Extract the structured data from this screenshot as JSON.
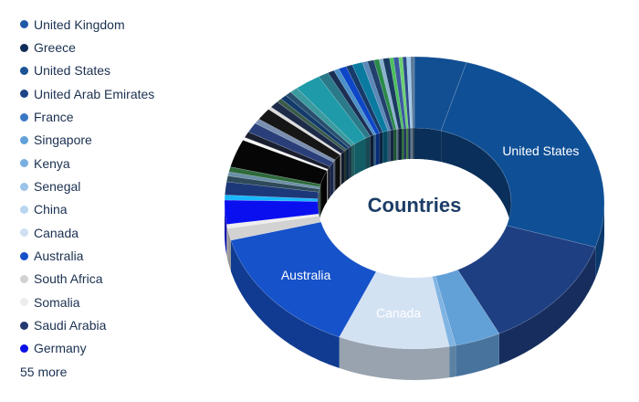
{
  "chart_data": {
    "type": "pie",
    "variant": "3d-donut",
    "title": "Countries",
    "legend_placement": "left",
    "legend": [
      {
        "name": "United Kingdom",
        "color": "#1f5aa6"
      },
      {
        "name": "Greece",
        "color": "#0f2d57"
      },
      {
        "name": "United States",
        "color": "#1c5296"
      },
      {
        "name": "United Arab Emirates",
        "color": "#1d4585"
      },
      {
        "name": "France",
        "color": "#3a78c4"
      },
      {
        "name": "Singapore",
        "color": "#62a0d8"
      },
      {
        "name": "Kenya",
        "color": "#78afe0"
      },
      {
        "name": "Senegal",
        "color": "#9cc3e8"
      },
      {
        "name": "China",
        "color": "#bad5ef"
      },
      {
        "name": "Canada",
        "color": "#cfe0f3"
      },
      {
        "name": "Australia",
        "color": "#1650c8"
      },
      {
        "name": "South Africa",
        "color": "#d2d2d2"
      },
      {
        "name": "Somalia",
        "color": "#ededed"
      },
      {
        "name": "Saudi Arabia",
        "color": "#243a6e"
      },
      {
        "name": "Germany",
        "color": "#0a10e6"
      }
    ],
    "legend_more": "55 more",
    "slices": [
      {
        "name": "United Kingdom",
        "value": 4.0,
        "color": "#114e92",
        "label": ""
      },
      {
        "name": "United States",
        "value": 23.0,
        "color": "#0f4f96",
        "label": "United States"
      },
      {
        "name": "United Arab Emirates",
        "value": 11.5,
        "color": "#1e3f82",
        "label": ""
      },
      {
        "name": "Singapore",
        "value": 3.5,
        "color": "#62a0d8",
        "label": ""
      },
      {
        "name": "Kenya",
        "value": 0.5,
        "color": "#80b4e2",
        "label": ""
      },
      {
        "name": "Canada",
        "value": 8.5,
        "color": "#d3e2f3",
        "label": "Canada"
      },
      {
        "name": "Australia",
        "value": 13.0,
        "color": "#1652c9",
        "label": "Australia"
      },
      {
        "name": "South Africa",
        "value": 1.2,
        "color": "#d2d2d2",
        "label": ""
      },
      {
        "name": "Somalia",
        "value": 0.4,
        "color": "#eeeeee",
        "label": ""
      },
      {
        "name": "Germany",
        "value": 2.4,
        "color": "#0a0ff0",
        "label": ""
      },
      {
        "name": "",
        "value": 0.5,
        "color": "#18b8ff",
        "label": ""
      },
      {
        "name": "",
        "value": 1.3,
        "color": "#1c3878",
        "label": ""
      },
      {
        "name": "",
        "value": 0.6,
        "color": "#2e4a5a",
        "label": ""
      },
      {
        "name": "",
        "value": 0.4,
        "color": "#6a8fa8",
        "label": ""
      },
      {
        "name": "",
        "value": 0.5,
        "color": "#2e6a3c",
        "label": ""
      },
      {
        "name": "",
        "value": 2.8,
        "color": "#060606",
        "label": ""
      },
      {
        "name": "",
        "value": 0.3,
        "color": "#f4f4f4",
        "label": ""
      },
      {
        "name": "",
        "value": 0.6,
        "color": "#1a1f30",
        "label": ""
      },
      {
        "name": "",
        "value": 1.0,
        "color": "#2a3f7a",
        "label": ""
      },
      {
        "name": "",
        "value": 0.5,
        "color": "#7a8fb0",
        "label": ""
      },
      {
        "name": "",
        "value": 1.2,
        "color": "#161616",
        "label": ""
      },
      {
        "name": "",
        "value": 0.3,
        "color": "#dddddd",
        "label": ""
      },
      {
        "name": "",
        "value": 0.7,
        "color": "#1d2b48",
        "label": ""
      },
      {
        "name": "",
        "value": 0.4,
        "color": "#3a5a4a",
        "label": ""
      },
      {
        "name": "",
        "value": 0.5,
        "color": "#123a6a",
        "label": ""
      },
      {
        "name": "",
        "value": 0.5,
        "color": "#28506e",
        "label": ""
      },
      {
        "name": "",
        "value": 0.6,
        "color": "#3a9a9e",
        "label": ""
      },
      {
        "name": "",
        "value": 2.0,
        "color": "#1e9aa8",
        "label": ""
      },
      {
        "name": "",
        "value": 0.8,
        "color": "#2a7a8a",
        "label": ""
      },
      {
        "name": "",
        "value": 0.5,
        "color": "#1b2f55",
        "label": ""
      },
      {
        "name": "",
        "value": 0.4,
        "color": "#4a90c8",
        "label": ""
      },
      {
        "name": "",
        "value": 0.6,
        "color": "#0d47c8",
        "label": ""
      },
      {
        "name": "",
        "value": 0.5,
        "color": "#163a6a",
        "label": ""
      },
      {
        "name": "",
        "value": 0.8,
        "color": "#0a7aa0",
        "label": ""
      },
      {
        "name": "",
        "value": 0.4,
        "color": "#5a88b8",
        "label": ""
      },
      {
        "name": "",
        "value": 0.5,
        "color": "#22406e",
        "label": ""
      },
      {
        "name": "",
        "value": 0.4,
        "color": "#2a8a4a",
        "label": ""
      },
      {
        "name": "",
        "value": 0.3,
        "color": "#8ab0d0",
        "label": ""
      },
      {
        "name": "",
        "value": 0.5,
        "color": "#1a3a60",
        "label": ""
      },
      {
        "name": "",
        "value": 0.3,
        "color": "#4ac05a",
        "label": ""
      },
      {
        "name": "",
        "value": 0.4,
        "color": "#3a5aa0",
        "label": ""
      },
      {
        "name": "",
        "value": 0.3,
        "color": "#6ad070",
        "label": ""
      },
      {
        "name": "",
        "value": 0.3,
        "color": "#2a4a8a",
        "label": ""
      },
      {
        "name": "",
        "value": 0.3,
        "color": "#a0c8e8",
        "label": ""
      },
      {
        "name": "",
        "value": 0.3,
        "color": "#5a7a9a",
        "label": ""
      }
    ]
  }
}
